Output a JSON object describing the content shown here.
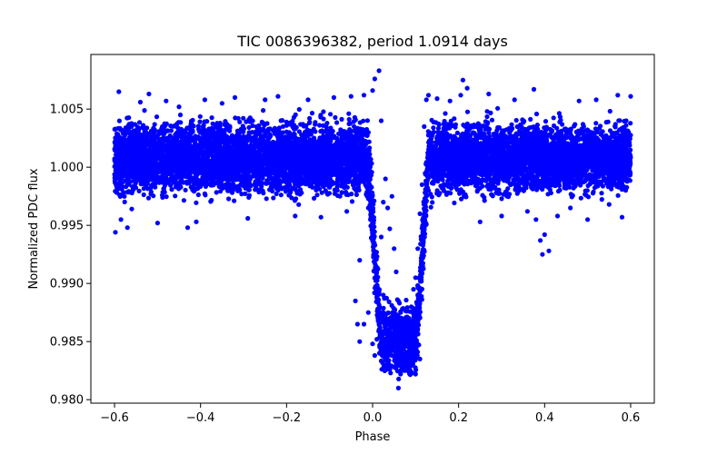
{
  "chart_data": {
    "type": "scatter",
    "title": "TIC 0086396382, period 1.0914 days",
    "xlabel": "Phase",
    "ylabel": "Normalized PDC flux",
    "xlim": [
      -0.655,
      0.655
    ],
    "ylim": [
      0.9797,
      1.0097
    ],
    "grid": false,
    "marker_color": "#0000ff",
    "x_ticks": [
      {
        "value": -0.6,
        "label": "−0.6"
      },
      {
        "value": -0.4,
        "label": "−0.4"
      },
      {
        "value": -0.2,
        "label": "−0.2"
      },
      {
        "value": 0.0,
        "label": "0.0"
      },
      {
        "value": 0.2,
        "label": "0.2"
      },
      {
        "value": 0.4,
        "label": "0.4"
      },
      {
        "value": 0.6,
        "label": "0.6"
      }
    ],
    "y_ticks": [
      {
        "value": 0.98,
        "label": "0.980"
      },
      {
        "value": 0.985,
        "label": "0.985"
      },
      {
        "value": 0.99,
        "label": "0.990"
      },
      {
        "value": 0.995,
        "label": "0.995"
      },
      {
        "value": 1.0,
        "label": "1.000"
      },
      {
        "value": 1.005,
        "label": "1.005"
      }
    ],
    "points": [
      [
        -0.598,
        0.9944
      ],
      [
        -0.59,
        1.0065
      ],
      [
        -0.585,
        0.9955
      ],
      [
        -0.57,
        0.9948
      ],
      [
        -0.56,
        0.9964
      ],
      [
        -0.54,
        1.0056
      ],
      [
        -0.52,
        1.0063
      ],
      [
        -0.5,
        0.9952
      ],
      [
        -0.48,
        1.0057
      ],
      [
        -0.45,
        1.0052
      ],
      [
        -0.43,
        0.9948
      ],
      [
        -0.41,
        0.9953
      ],
      [
        -0.39,
        1.0058
      ],
      [
        -0.35,
        1.0055
      ],
      [
        -0.32,
        1.006
      ],
      [
        -0.29,
        0.9956
      ],
      [
        -0.25,
        1.0058
      ],
      [
        -0.22,
        1.0061
      ],
      [
        -0.18,
        0.9958
      ],
      [
        -0.15,
        1.0058
      ],
      [
        -0.12,
        0.9957
      ],
      [
        -0.09,
        1.006
      ],
      [
        -0.06,
        0.9962
      ],
      [
        -0.05,
        1.0061
      ],
      [
        -0.02,
        1.0062
      ],
      [
        0.0,
        1.0066
      ],
      [
        0.005,
        1.0076
      ],
      [
        0.015,
        1.0083
      ],
      [
        0.02,
        1.004
      ],
      [
        -0.01,
        0.9965
      ],
      [
        -0.005,
        0.9955
      ],
      [
        0.0,
        0.9945
      ],
      [
        -0.03,
        0.992
      ],
      [
        -0.04,
        0.9885
      ],
      [
        -0.035,
        0.9865
      ],
      [
        -0.03,
        0.985
      ],
      [
        -0.02,
        0.9865
      ],
      [
        -0.01,
        0.9875
      ],
      [
        0.0,
        0.9848
      ],
      [
        0.005,
        0.9838
      ],
      [
        0.01,
        0.9852
      ],
      [
        0.015,
        0.9865
      ],
      [
        0.02,
        0.9875
      ],
      [
        0.025,
        0.989
      ],
      [
        0.02,
        0.994
      ],
      [
        0.025,
        0.997
      ],
      [
        0.03,
        0.999
      ],
      [
        0.035,
        0.9965
      ],
      [
        0.04,
        0.9947
      ],
      [
        0.045,
        0.9975
      ],
      [
        0.05,
        0.993
      ],
      [
        0.055,
        0.991
      ],
      [
        0.06,
        0.9885
      ],
      [
        0.065,
        0.986
      ],
      [
        0.07,
        0.9845
      ],
      [
        0.075,
        0.9835
      ],
      [
        0.08,
        0.985
      ],
      [
        0.085,
        0.9865
      ],
      [
        0.09,
        0.988
      ],
      [
        0.095,
        0.9895
      ],
      [
        0.1,
        0.9905
      ],
      [
        0.105,
        0.993
      ],
      [
        0.11,
        0.996
      ],
      [
        0.115,
        0.9985
      ],
      [
        0.12,
        1.0035
      ],
      [
        0.125,
        1.0058
      ],
      [
        0.13,
        1.0062
      ],
      [
        0.15,
        1.0059
      ],
      [
        0.18,
        1.0057
      ],
      [
        0.205,
        1.0062
      ],
      [
        0.21,
        1.0075
      ],
      [
        0.22,
        1.0068
      ],
      [
        0.25,
        0.9953
      ],
      [
        0.27,
        1.0063
      ],
      [
        0.3,
        0.9958
      ],
      [
        0.33,
        1.0058
      ],
      [
        0.36,
        0.9962
      ],
      [
        0.375,
        1.0067
      ],
      [
        0.38,
        0.9955
      ],
      [
        0.39,
        0.9937
      ],
      [
        0.395,
        0.9925
      ],
      [
        0.4,
        0.9942
      ],
      [
        0.41,
        0.9928
      ],
      [
        0.43,
        0.9958
      ],
      [
        0.46,
        0.9965
      ],
      [
        0.48,
        1.0057
      ],
      [
        0.5,
        0.9955
      ],
      [
        0.52,
        1.0058
      ],
      [
        0.55,
        0.9968
      ],
      [
        0.57,
        1.0062
      ],
      [
        0.58,
        0.9957
      ],
      [
        0.6,
        1.0061
      ],
      [
        0.06,
        0.981
      ],
      [
        0.065,
        0.9822
      ],
      [
        0.075,
        0.9825
      ],
      [
        0.1,
        0.9822
      ],
      [
        0.11,
        0.9835
      ],
      [
        0.04,
        0.9855
      ]
    ]
  }
}
